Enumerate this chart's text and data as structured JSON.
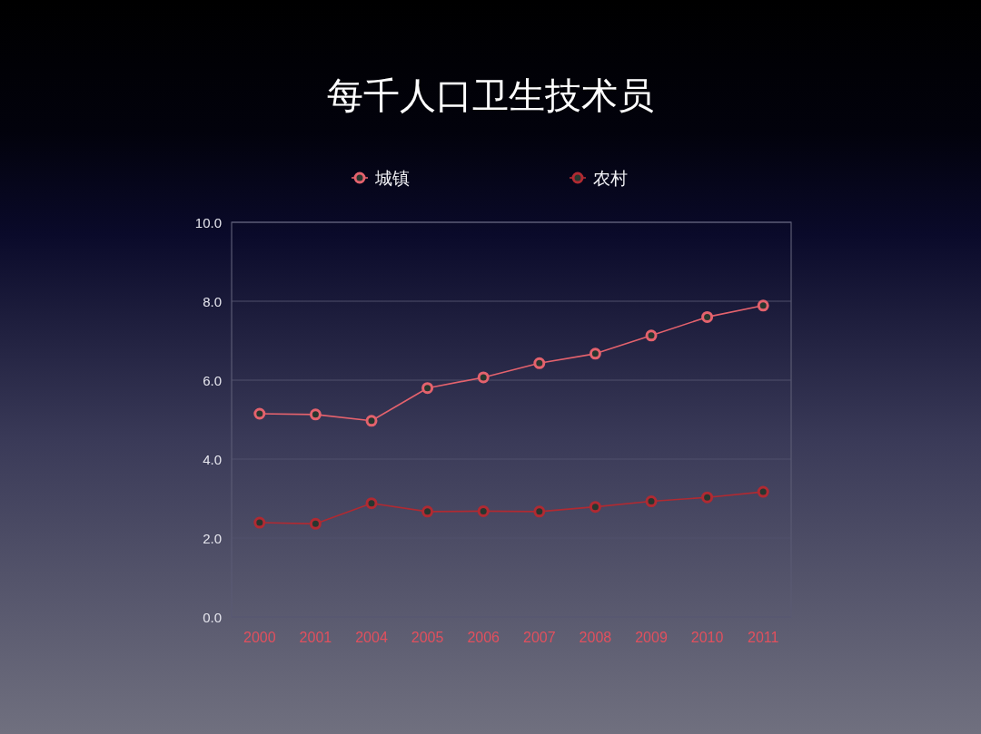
{
  "chart_data": {
    "type": "line",
    "title": "每千人口卫生技术员",
    "categories": [
      "2000",
      "2001",
      "2004",
      "2005",
      "2006",
      "2007",
      "2008",
      "2009",
      "2010",
      "2011"
    ],
    "series": [
      {
        "name": "城镇",
        "color": "#e4626d",
        "values": [
          5.15,
          5.13,
          4.97,
          5.8,
          6.07,
          6.43,
          6.67,
          7.13,
          7.6,
          7.89
        ]
      },
      {
        "name": "农村",
        "color": "#b02a32",
        "values": [
          2.39,
          2.36,
          2.88,
          2.67,
          2.68,
          2.67,
          2.79,
          2.93,
          3.03,
          3.17
        ]
      }
    ],
    "ylim": [
      0,
      10
    ],
    "yticks": [
      {
        "value": 0,
        "label": "0.0"
      },
      {
        "value": 2,
        "label": "2.0"
      },
      {
        "value": 4,
        "label": "4.0"
      },
      {
        "value": 6,
        "label": "6.0"
      },
      {
        "value": 8,
        "label": "8.0"
      },
      {
        "value": 10,
        "label": "10.0"
      }
    ],
    "grid": "y",
    "legend": "top",
    "marker": "circle",
    "line_style": "solid"
  }
}
